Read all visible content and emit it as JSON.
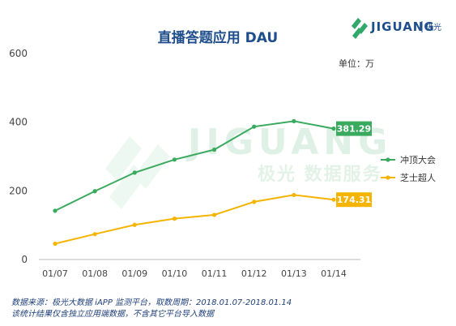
{
  "brand": {
    "name": "JIGUANG",
    "sub": "极光"
  },
  "watermark": {
    "main": "JIGUANG",
    "sub": "极光 数据服务"
  },
  "chart_data": {
    "type": "line",
    "title": "直播答题应用 DAU",
    "unit_label": "单位：万",
    "categories": [
      "01/07",
      "01/08",
      "01/09",
      "01/10",
      "01/11",
      "01/12",
      "01/13",
      "01/14"
    ],
    "ylim": [
      0,
      600
    ],
    "yticks": [
      0,
      200,
      400,
      600
    ],
    "grid": false,
    "legend_position": "right",
    "series": [
      {
        "name": "冲顶大会",
        "color": "#3aaa5f",
        "values": [
          142,
          199,
          253,
          291,
          320,
          387,
          403,
          381.29
        ],
        "end_label": "381.29"
      },
      {
        "name": "芝士超人",
        "color": "#f5b400",
        "values": [
          46,
          74,
          101,
          119,
          130,
          168,
          188,
          174.31
        ],
        "end_label": "174.31"
      }
    ]
  },
  "footer": {
    "line1": "数据来源：极光大数据 iAPP 监测平台，取数周期：2018.01.07-2018.01.14",
    "line2": "该统计结果仅含独立应用端数据，不含其它平台导入数据"
  }
}
